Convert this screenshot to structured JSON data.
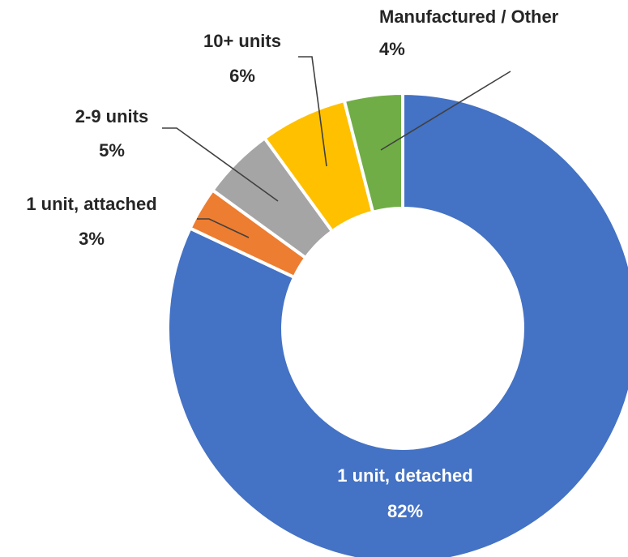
{
  "chart_data": {
    "type": "donut",
    "categories": [
      "1 unit, detached",
      "1 unit, attached",
      "2-9 units",
      "10+ units",
      "Manufactured / Other"
    ],
    "values": [
      82,
      3,
      5,
      6,
      4
    ],
    "value_labels": [
      "82%",
      "3%",
      "5%",
      "6%",
      "4%"
    ],
    "colors": [
      "#4472c4",
      "#ed7d31",
      "#a5a5a5",
      "#ffc000",
      "#70ad47"
    ]
  }
}
